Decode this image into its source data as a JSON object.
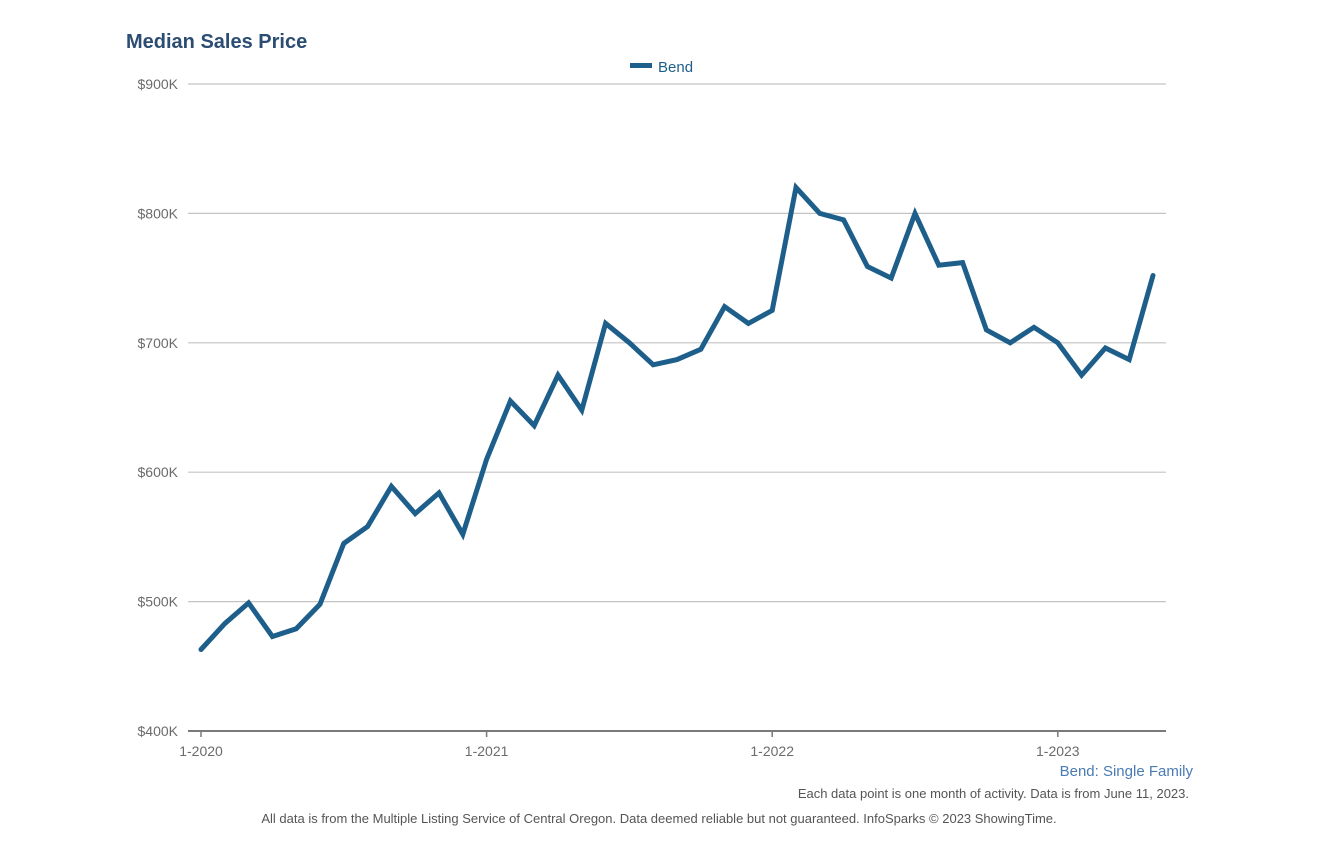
{
  "chart_data": {
    "type": "line",
    "title": "Median Sales Price",
    "legend": {
      "position": "top-center",
      "entries": [
        "Bend"
      ]
    },
    "series": [
      {
        "name": "Bend",
        "color": "#1d5f8a",
        "values": [
          463000,
          483000,
          499000,
          473000,
          479000,
          498000,
          545000,
          558000,
          589000,
          568000,
          584000,
          552000,
          610000,
          655000,
          636000,
          675000,
          648000,
          715000,
          700000,
          683000,
          687000,
          695000,
          728000,
          715000,
          725000,
          820000,
          800000,
          795000,
          759000,
          750000,
          800000,
          760000,
          762000,
          710000,
          700000,
          712000,
          700000,
          675000,
          696000,
          687000,
          752000
        ]
      }
    ],
    "x": {
      "start": "2020-01",
      "count": 41,
      "tick_labels": [
        "1-2020",
        "1-2021",
        "1-2022",
        "1-2023"
      ],
      "tick_index": [
        0,
        12,
        24,
        36
      ]
    },
    "y": {
      "min": 400000,
      "max": 900000,
      "step": 100000,
      "tick_labels": [
        "$400K",
        "$500K",
        "$600K",
        "$700K",
        "$800K",
        "$900K"
      ]
    },
    "grid": true,
    "subtitle": "Bend: Single Family",
    "note": "Each data point is one month of activity. Data is from June 11, 2023.",
    "footer": "All data is from the Multiple Listing Service of Central Oregon. Data deemed reliable but not guaranteed. InfoSparks © 2023 ShowingTime."
  }
}
